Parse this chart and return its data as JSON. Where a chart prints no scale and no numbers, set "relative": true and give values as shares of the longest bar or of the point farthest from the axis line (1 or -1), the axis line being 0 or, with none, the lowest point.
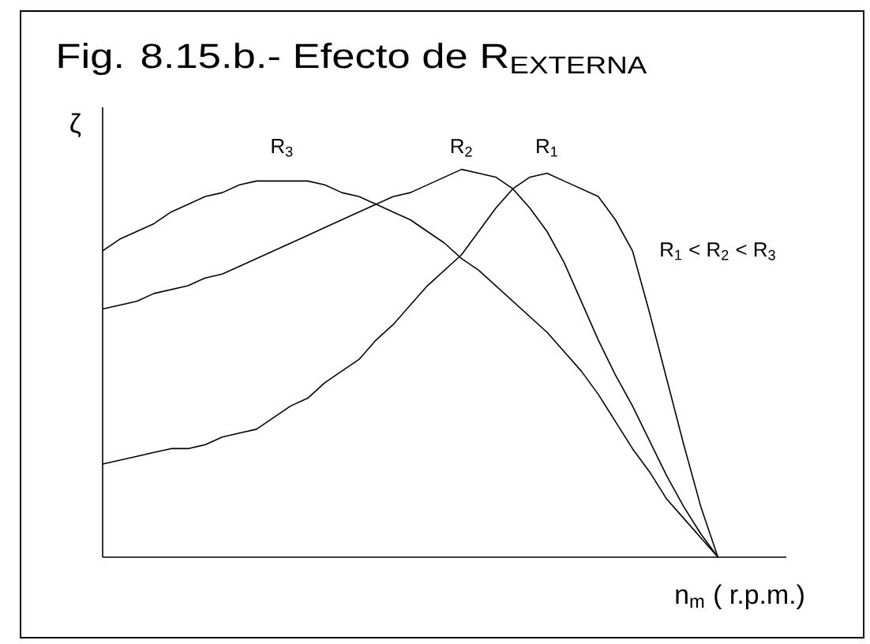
{
  "chart_data": {
    "type": "line",
    "title": "Fig. 8.15.b.- Efecto de R$_{EXTERNA}$",
    "xlabel": "n$_{m}$ ( r.p.m.)",
    "ylabel": "ζ",
    "relative": true,
    "categories": [
      null,
      null,
      null,
      null,
      null,
      null,
      null,
      null,
      null,
      null,
      null,
      null,
      null,
      null,
      null,
      null,
      null,
      null,
      null,
      null,
      null,
      null,
      null,
      null,
      null,
      null,
      null,
      null,
      null,
      null,
      null,
      null,
      null,
      null,
      null,
      null,
      null,
      null,
      null,
      null,
      null
    ],
    "series": [
      {
        "name": "R$_{1}$",
        "color": "#000000",
        "values": [
          0.24,
          0.25,
          0.26,
          0.27,
          0.28,
          0.28,
          0.29,
          0.31,
          0.32,
          0.33,
          0.36,
          0.39,
          0.41,
          0.45,
          0.48,
          0.51,
          0.56,
          0.6,
          0.65,
          0.7,
          0.74,
          0.78,
          0.84,
          0.9,
          0.95,
          0.98,
          0.99,
          0.97,
          0.95,
          0.93,
          0.87,
          0.79,
          0.63,
          0.46,
          0.29,
          0.13,
          0,
          null,
          null,
          null,
          null
        ]
      },
      {
        "name": "R$_{2}$",
        "color": "#000000",
        "values": [
          0.64,
          0.65,
          0.66,
          0.68,
          0.69,
          0.7,
          0.72,
          0.73,
          0.75,
          0.77,
          0.79,
          0.81,
          0.83,
          0.85,
          0.87,
          0.89,
          0.91,
          0.93,
          0.94,
          0.96,
          0.98,
          1,
          0.99,
          0.98,
          0.95,
          0.9,
          0.84,
          0.76,
          0.66,
          0.56,
          0.47,
          0.39,
          0.3,
          0.21,
          0.13,
          0.06,
          0,
          null,
          null,
          null,
          null
        ]
      },
      {
        "name": "R$_{3}$",
        "color": "#000000",
        "values": [
          0.79,
          0.82,
          0.84,
          0.86,
          0.89,
          0.91,
          0.93,
          0.94,
          0.96,
          0.97,
          0.97,
          0.97,
          0.97,
          0.96,
          0.94,
          0.93,
          0.91,
          0.89,
          0.87,
          0.84,
          0.81,
          0.77,
          0.74,
          0.7,
          0.66,
          0.62,
          0.58,
          0.53,
          0.48,
          0.42,
          0.35,
          0.28,
          0.22,
          0.15,
          0.1,
          0.05,
          0,
          null,
          null,
          null,
          null
        ]
      }
    ],
    "annotations": [
      "R$_{1}$ < R$_{2}$ < R$_{3}$"
    ]
  }
}
